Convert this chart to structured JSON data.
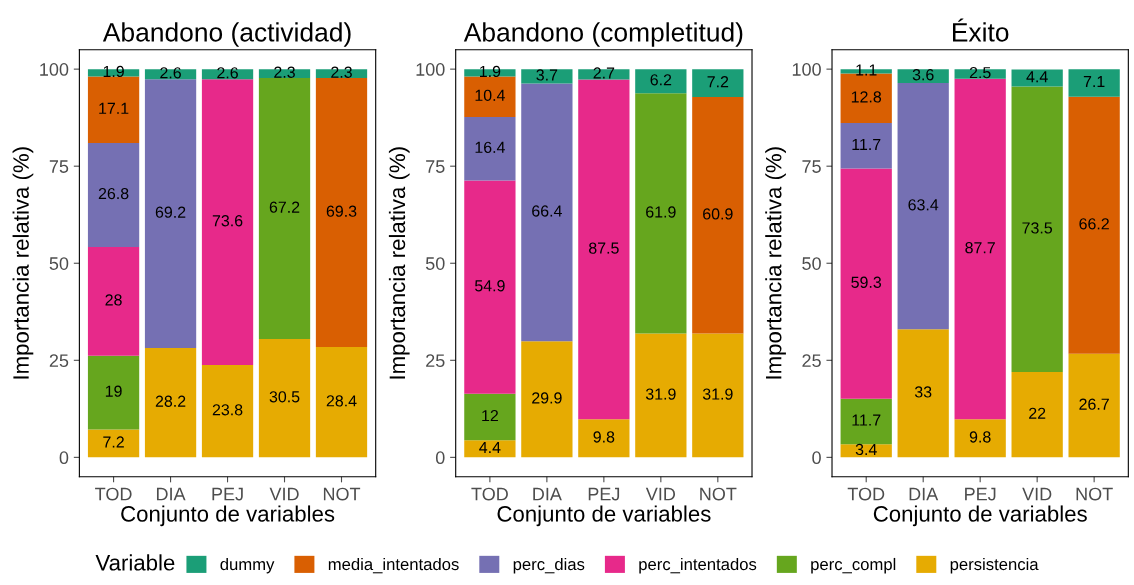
{
  "chart_data": [
    {
      "type": "bar",
      "stacked": true,
      "title": "Abandono (actividad)",
      "xlabel": "Conjunto de variables",
      "ylabel": "Importancia relativa (%)",
      "legend_title": "Variable",
      "legend": "bottom",
      "data_labels": true,
      "grid": false,
      "categories": [
        "TOD",
        "DIA",
        "PEJ",
        "VID",
        "NOT"
      ],
      "ylim": [
        -5,
        105
      ],
      "yticks": [
        0,
        25,
        50,
        75,
        100
      ],
      "series": [
        {
          "name": "persistencia",
          "color": "#e6ab02",
          "values": [
            7.2,
            28.2,
            23.8,
            30.5,
            28.4
          ]
        },
        {
          "name": "perc_compl",
          "color": "#66a61e",
          "values": [
            19,
            null,
            null,
            67.2,
            null
          ]
        },
        {
          "name": "perc_intentados",
          "color": "#e7298a",
          "values": [
            28,
            null,
            73.6,
            null,
            null
          ]
        },
        {
          "name": "perc_dias",
          "color": "#7570b3",
          "values": [
            26.8,
            69.2,
            null,
            null,
            null
          ]
        },
        {
          "name": "media_intentados",
          "color": "#d95f02",
          "values": [
            17.1,
            null,
            null,
            null,
            69.3
          ]
        },
        {
          "name": "dummy",
          "color": "#1b9e77",
          "values": [
            1.9,
            2.6,
            2.6,
            2.3,
            2.3
          ]
        }
      ]
    },
    {
      "type": "bar",
      "stacked": true,
      "title": "Abandono (completitud)",
      "xlabel": "Conjunto de variables",
      "ylabel": "Importancia relativa (%)",
      "data_labels": true,
      "grid": false,
      "categories": [
        "TOD",
        "DIA",
        "PEJ",
        "VID",
        "NOT"
      ],
      "ylim": [
        -5,
        105
      ],
      "yticks": [
        0,
        25,
        50,
        75,
        100
      ],
      "series": [
        {
          "name": "persistencia",
          "color": "#e6ab02",
          "values": [
            4.4,
            29.9,
            9.8,
            31.9,
            31.9
          ]
        },
        {
          "name": "perc_compl",
          "color": "#66a61e",
          "values": [
            12,
            null,
            null,
            61.9,
            null
          ]
        },
        {
          "name": "perc_intentados",
          "color": "#e7298a",
          "values": [
            54.9,
            null,
            87.5,
            null,
            null
          ]
        },
        {
          "name": "perc_dias",
          "color": "#7570b3",
          "values": [
            16.4,
            66.4,
            null,
            null,
            null
          ]
        },
        {
          "name": "media_intentados",
          "color": "#d95f02",
          "values": [
            10.4,
            null,
            null,
            null,
            60.9
          ]
        },
        {
          "name": "dummy",
          "color": "#1b9e77",
          "values": [
            1.9,
            3.7,
            2.7,
            6.2,
            7.2
          ]
        }
      ]
    },
    {
      "type": "bar",
      "stacked": true,
      "title": "Éxito",
      "xlabel": "Conjunto de variables",
      "ylabel": "Importancia relativa (%)",
      "data_labels": true,
      "grid": false,
      "categories": [
        "TOD",
        "DIA",
        "PEJ",
        "VID",
        "NOT"
      ],
      "ylim": [
        -5,
        105
      ],
      "yticks": [
        0,
        25,
        50,
        75,
        100
      ],
      "series": [
        {
          "name": "persistencia",
          "color": "#e6ab02",
          "values": [
            3.4,
            33,
            9.8,
            22,
            26.7
          ]
        },
        {
          "name": "perc_compl",
          "color": "#66a61e",
          "values": [
            11.7,
            null,
            null,
            73.5,
            null
          ]
        },
        {
          "name": "perc_intentados",
          "color": "#e7298a",
          "values": [
            59.3,
            null,
            87.7,
            null,
            null
          ]
        },
        {
          "name": "perc_dias",
          "color": "#7570b3",
          "values": [
            11.7,
            63.4,
            null,
            null,
            null
          ]
        },
        {
          "name": "media_intentados",
          "color": "#d95f02",
          "values": [
            12.8,
            null,
            null,
            null,
            66.2
          ]
        },
        {
          "name": "dummy",
          "color": "#1b9e77",
          "values": [
            1.1,
            3.6,
            2.5,
            4.4,
            7.1
          ]
        }
      ]
    }
  ]
}
